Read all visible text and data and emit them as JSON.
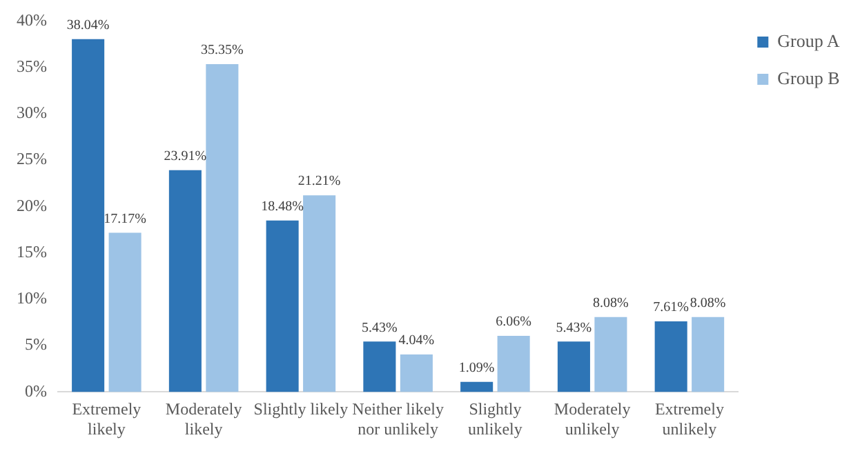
{
  "chart_data": {
    "type": "bar",
    "categories": [
      "Extremely likely",
      "Moderately likely",
      "Slightly likely",
      "Neither likely nor unlikely",
      "Slightly unlikely",
      "Moderately unlikely",
      "Extremely unlikely"
    ],
    "series": [
      {
        "name": "Group A",
        "color": "#2e75b6",
        "values": [
          38.04,
          23.91,
          18.48,
          5.43,
          1.09,
          5.43,
          7.61
        ],
        "value_labels": [
          "38.04%",
          "23.91%",
          "18.48%",
          "5.43%",
          "1.09%",
          "5.43%",
          "7.61%"
        ]
      },
      {
        "name": "Group B",
        "color": "#9dc3e6",
        "values": [
          17.17,
          35.35,
          21.21,
          4.04,
          6.06,
          8.08,
          8.08
        ],
        "value_labels": [
          "17.17%",
          "35.35%",
          "21.21%",
          "4.04%",
          "6.06%",
          "8.08%",
          "8.08%"
        ]
      }
    ],
    "ylim": [
      0,
      40
    ],
    "yticks": [
      {
        "value": 0,
        "label": "0%"
      },
      {
        "value": 5,
        "label": "5%"
      },
      {
        "value": 10,
        "label": "10%"
      },
      {
        "value": 15,
        "label": "15%"
      },
      {
        "value": 20,
        "label": "20%"
      },
      {
        "value": 25,
        "label": "25%"
      },
      {
        "value": 30,
        "label": "30%"
      },
      {
        "value": 35,
        "label": "35%"
      },
      {
        "value": 40,
        "label": "40%"
      }
    ],
    "grid": false,
    "legend": "top right"
  }
}
